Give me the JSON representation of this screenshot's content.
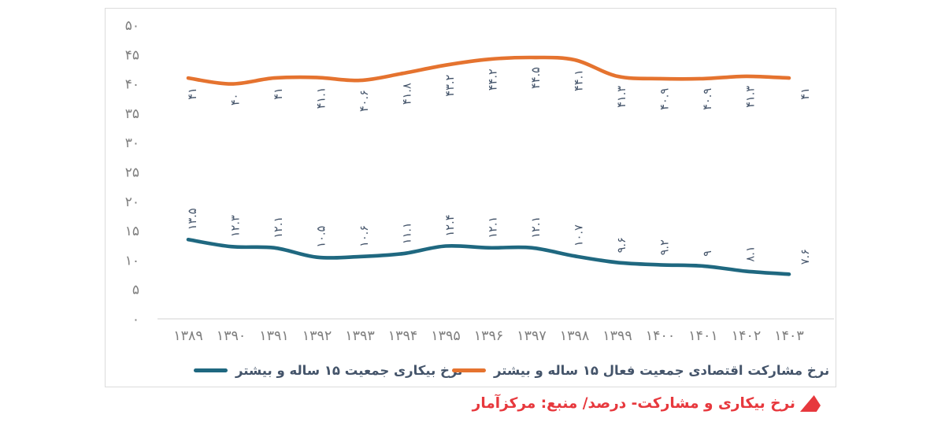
{
  "chart_data": {
    "type": "line",
    "title": "",
    "unit": "درصد",
    "x_categories_fa": [
      "۱۳۸۹",
      "۱۳۹۰",
      "۱۳۹۱",
      "۱۳۹۲",
      "۱۳۹۳",
      "۱۳۹۴",
      "۱۳۹۵",
      "۱۳۹۶",
      "۱۳۹۷",
      "۱۳۹۸",
      "۱۳۹۹",
      "۱۴۰۰",
      "۱۴۰۱",
      "۱۴۰۲",
      "۱۴۰۳"
    ],
    "x_categories_en": [
      1389,
      1390,
      1391,
      1392,
      1393,
      1394,
      1395,
      1396,
      1397,
      1398,
      1399,
      1400,
      1401,
      1402,
      1403
    ],
    "y_axis": {
      "min": 0,
      "max": 50,
      "step": 5,
      "tick_labels_fa": [
        "۰",
        "۵",
        "۱۰",
        "۱۵",
        "۲۰",
        "۲۵",
        "۳۰",
        "۳۵",
        "۴۰",
        "۴۵",
        "۵۰"
      ]
    },
    "grid": "off",
    "legend_position": "bottom",
    "series": [
      {
        "id": "participation",
        "name": "نرخ مشارکت اقتصادی جمعیت فعال ۱۵ ساله و بیشتر",
        "color": "#e5732f",
        "label_placement": "below",
        "values": [
          41,
          40,
          41,
          41.1,
          40.6,
          41.8,
          43.2,
          44.2,
          44.5,
          44.1,
          41.3,
          40.9,
          40.9,
          41.3,
          41
        ],
        "labels_fa": [
          "۴۱",
          "۴۰",
          "۴۱",
          "۴۱.۱",
          "۴۰.۶",
          "۴۱.۸",
          "۴۳.۲",
          "۴۴.۲",
          "۴۴.۵",
          "۴۴.۱",
          "۴۱.۳",
          "۴۰.۹",
          "۴۰.۹",
          "۴۱.۳",
          "۴۱"
        ]
      },
      {
        "id": "unemployment",
        "name": "نرخ بیکاری جمعیت ۱۵ ساله و بیشتر",
        "color": "#1f6880",
        "label_placement": "above",
        "values": [
          13.5,
          12.3,
          12.1,
          10.5,
          10.6,
          11.1,
          12.4,
          12.1,
          12.1,
          10.7,
          9.6,
          9.2,
          9,
          8.1,
          7.6
        ],
        "labels_fa": [
          "۱۳.۵",
          "۱۲.۳",
          "۱۲.۱",
          "۱۰.۵",
          "۱۰.۶",
          "۱۱.۱",
          "۱۲.۴",
          "۱۲.۱",
          "۱۲.۱",
          "۱۰.۷",
          "۹.۶",
          "۹.۲",
          "۹",
          "۸.۱",
          "۷.۶"
        ]
      }
    ]
  },
  "legend": {
    "unemployment_label": "نرخ بیکاری جمعیت ۱۵ ساله و بیشتر",
    "participation_label": "نرخ مشارکت اقتصادی جمعیت فعال ۱۵ ساله و بیشتر"
  },
  "caption": {
    "text": "نرخ بیکاری و مشارکت- درصد/ منبع: مرکزآمار"
  },
  "colors": {
    "participation_line": "#e5732f",
    "unemployment_line": "#1f6880",
    "data_label": "#44546a",
    "axis_text": "#7f7f7f",
    "axis_line": "#d9d9d9",
    "frame_border": "#dcdcdc",
    "caption_red": "#e7383d"
  }
}
